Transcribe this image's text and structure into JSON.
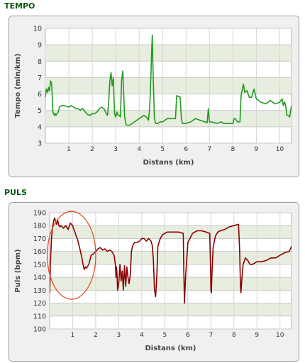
{
  "chart_data": [
    {
      "type": "line",
      "section_title": "TEMPO",
      "xlabel": "Distans (km)",
      "ylabel": "Tempo (min/km)",
      "xlim": [
        0,
        10.5
      ],
      "ylim": [
        3,
        10
      ],
      "x_ticks": [
        1,
        2,
        3,
        4,
        5,
        6,
        7,
        8,
        9,
        10
      ],
      "y_ticks": [
        3,
        4,
        5,
        6,
        7,
        8,
        9,
        10
      ],
      "grid": "horizontal-banded",
      "line_color": "#1f9a1f",
      "series": [
        {
          "x": [
            0.0,
            0.04,
            0.1,
            0.13,
            0.18,
            0.22,
            0.27,
            0.32,
            0.38,
            0.42,
            0.45,
            0.5,
            0.55,
            0.6,
            0.7,
            0.8,
            0.9,
            1.0,
            1.1,
            1.2,
            1.3,
            1.4,
            1.5,
            1.55,
            1.6,
            1.7,
            1.8,
            1.9,
            2.0,
            2.1,
            2.2,
            2.3,
            2.4,
            2.5,
            2.6,
            2.65,
            2.7,
            2.75,
            2.8,
            2.85,
            2.9,
            2.95,
            3.0,
            3.05,
            3.1,
            3.15,
            3.2,
            3.25,
            3.3,
            3.38,
            3.45,
            3.6,
            3.8,
            4.0,
            4.2,
            4.3,
            4.4,
            4.45,
            4.5,
            4.53,
            4.56,
            4.6,
            4.65,
            4.7,
            4.8,
            4.9,
            5.0,
            5.2,
            5.4,
            5.55,
            5.6,
            5.75,
            5.8,
            5.85,
            6.0,
            6.2,
            6.4,
            6.6,
            6.8,
            6.9,
            6.95,
            7.0,
            7.1,
            7.3,
            7.5,
            7.6,
            7.8,
            8.0,
            8.05,
            8.1,
            8.2,
            8.3,
            8.35,
            8.4,
            8.45,
            8.5,
            8.6,
            8.7,
            8.8,
            8.9,
            9.0,
            9.2,
            9.4,
            9.6,
            9.8,
            10.0,
            10.1,
            10.15,
            10.2,
            10.25,
            10.3,
            10.35,
            10.42,
            10.5
          ],
          "y": [
            5.8,
            6.3,
            6.1,
            6.4,
            6.2,
            6.8,
            6.6,
            4.9,
            4.7,
            4.8,
            4.7,
            4.8,
            4.9,
            5.2,
            5.3,
            5.3,
            5.25,
            5.2,
            5.3,
            5.2,
            5.1,
            5.1,
            5.0,
            5.1,
            5.1,
            4.9,
            4.75,
            4.7,
            4.8,
            4.8,
            4.9,
            5.1,
            5.2,
            5.1,
            4.8,
            4.7,
            5.5,
            6.8,
            7.3,
            6.5,
            7.0,
            4.8,
            4.6,
            4.9,
            4.7,
            4.7,
            4.6,
            6.8,
            7.4,
            4.6,
            4.1,
            4.1,
            4.3,
            4.5,
            4.7,
            4.6,
            4.4,
            5.2,
            7.0,
            8.5,
            9.6,
            7.0,
            4.5,
            4.2,
            4.2,
            4.3,
            4.3,
            4.5,
            4.5,
            4.5,
            5.9,
            5.8,
            4.5,
            4.2,
            4.2,
            4.3,
            4.5,
            4.4,
            4.3,
            4.25,
            5.1,
            4.3,
            4.3,
            4.2,
            4.3,
            4.2,
            4.2,
            4.2,
            4.5,
            4.5,
            4.3,
            4.3,
            5.9,
            6.3,
            6.6,
            6.1,
            6.2,
            5.8,
            5.8,
            6.3,
            5.7,
            5.5,
            5.4,
            5.6,
            5.4,
            5.5,
            5.7,
            5.3,
            5.5,
            5.3,
            4.7,
            4.7,
            4.6,
            5.3
          ]
        }
      ]
    },
    {
      "type": "line",
      "section_title": "PULS",
      "xlabel": "Distans (km)",
      "ylabel": "Puls (bpm)",
      "xlim": [
        0,
        10.5
      ],
      "ylim": [
        100,
        190
      ],
      "x_ticks": [
        1,
        2,
        3,
        4,
        5,
        6,
        7,
        8,
        9,
        10
      ],
      "y_ticks": [
        100,
        110,
        120,
        130,
        140,
        150,
        160,
        170,
        180,
        190
      ],
      "grid": "horizontal-banded",
      "line_color": "#8b0000",
      "annotation": {
        "shape": "ellipse",
        "color": "#e0502a",
        "x_range": [
          -0.1,
          2.0
        ],
        "y_range": [
          123,
          191
        ]
      },
      "series": [
        {
          "x": [
            0.0,
            0.03,
            0.08,
            0.12,
            0.18,
            0.22,
            0.26,
            0.3,
            0.35,
            0.4,
            0.45,
            0.5,
            0.6,
            0.7,
            0.8,
            0.9,
            1.0,
            1.05,
            1.1,
            1.15,
            1.2,
            1.3,
            1.4,
            1.45,
            1.5,
            1.55,
            1.6,
            1.7,
            1.8,
            1.9,
            2.0,
            2.1,
            2.2,
            2.3,
            2.4,
            2.5,
            2.6,
            2.7,
            2.8,
            2.85,
            2.88,
            2.9,
            2.92,
            2.95,
            3.0,
            3.05,
            3.1,
            3.15,
            3.2,
            3.25,
            3.3,
            3.35,
            3.4,
            3.45,
            3.5,
            3.55,
            3.6,
            3.65,
            3.7,
            3.8,
            3.9,
            4.0,
            4.1,
            4.2,
            4.3,
            4.4,
            4.45,
            4.5,
            4.55,
            4.6,
            4.65,
            4.7,
            4.8,
            4.9,
            5.0,
            5.1,
            5.2,
            5.4,
            5.6,
            5.8,
            5.82,
            5.85,
            5.9,
            6.0,
            6.2,
            6.4,
            6.6,
            6.8,
            6.95,
            6.98,
            7.0,
            7.02,
            7.05,
            7.1,
            7.2,
            7.3,
            7.4,
            7.6,
            7.8,
            8.0,
            8.2,
            8.25,
            8.28,
            8.3,
            8.35,
            8.4,
            8.5,
            8.6,
            8.7,
            8.8,
            9.0,
            9.2,
            9.4,
            9.6,
            9.8,
            10.0,
            10.2,
            10.4,
            10.5
          ],
          "y": [
            128,
            150,
            170,
            178,
            184,
            186,
            183,
            181,
            184,
            180,
            179,
            180,
            178,
            180,
            177,
            182,
            180,
            177,
            175,
            172,
            170,
            163,
            155,
            150,
            146,
            148,
            147,
            150,
            157,
            158,
            160,
            162,
            163,
            161,
            162,
            160,
            161,
            160,
            157,
            150,
            140,
            148,
            144,
            130,
            135,
            150,
            137,
            145,
            130,
            149,
            133,
            148,
            140,
            135,
            142,
            160,
            164,
            166,
            167,
            167,
            168,
            170,
            170,
            168,
            170,
            168,
            165,
            155,
            130,
            125,
            140,
            164,
            170,
            173,
            174,
            175,
            175,
            175,
            175,
            174,
            150,
            120,
            140,
            167,
            174,
            176,
            176,
            175,
            174,
            150,
            130,
            128,
            145,
            164,
            172,
            175,
            176,
            177,
            179,
            180,
            181,
            160,
            135,
            128,
            140,
            150,
            155,
            153,
            150,
            150,
            152,
            152,
            153,
            155,
            155,
            157,
            159,
            160,
            164
          ]
        }
      ]
    }
  ]
}
